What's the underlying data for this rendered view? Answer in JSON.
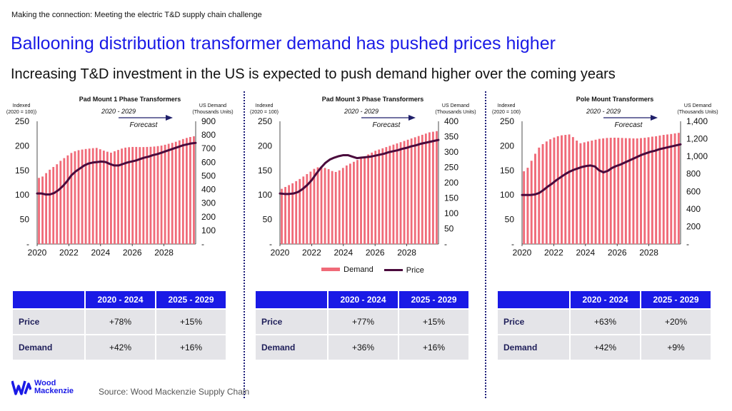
{
  "header": {
    "eyebrow": "Making the connection: Meeting the electric T&D supply chain challenge",
    "title": "Ballooning distribution transformer demand has pushed prices higher",
    "subtitle": "Increasing T&D investment in the US is expected to push demand higher over the coming years"
  },
  "colors": {
    "demand": "#f06a78",
    "price": "#4a0a3c",
    "accent": "#1a1ae6",
    "table_cell": "#e4e4e8"
  },
  "legend": {
    "demand": "Demand",
    "price": "Price"
  },
  "table_headers": [
    "2020 - 2024",
    "2025 - 2029"
  ],
  "row_labels": {
    "price": "Price",
    "demand": "Demand"
  },
  "chart_data": [
    {
      "type": "bar+line",
      "title": "Pad Mount 1 Phase Transformers",
      "left_axis_label": [
        "Indexed",
        "(2020 = 100))"
      ],
      "right_axis_label": [
        "US Demand",
        "(Thousands Units)"
      ],
      "period_label": "2020 - 2029",
      "forecast_label": "Forecast",
      "x_ticks": [
        "2020",
        "2022",
        "2024",
        "2026",
        "2028"
      ],
      "left_ticks": [
        "-",
        "50",
        "100",
        "150",
        "200",
        "250"
      ],
      "right_ticks": [
        "-",
        "100",
        "200",
        "300",
        "400",
        "500",
        "600",
        "700",
        "800",
        "900"
      ],
      "ylim_left": [
        0,
        250
      ],
      "ylim_right": [
        0,
        900
      ],
      "demand_quarterly": [
        485,
        495,
        520,
        545,
        565,
        585,
        610,
        630,
        650,
        668,
        680,
        688,
        693,
        697,
        700,
        703,
        705,
        695,
        685,
        677,
        670,
        680,
        690,
        700,
        707,
        710,
        712,
        712,
        711,
        711,
        712,
        713,
        715,
        718,
        722,
        728,
        735,
        742,
        750,
        760,
        770,
        778,
        785,
        790
      ],
      "price_index_quarterly": [
        103,
        103,
        101,
        101,
        104,
        110,
        118,
        128,
        140,
        148,
        154,
        160,
        164,
        166,
        167,
        168,
        167,
        163,
        160,
        160,
        163,
        166,
        168,
        170,
        173,
        176,
        178,
        181,
        183,
        186,
        189,
        192,
        195,
        198,
        201,
        203,
        205,
        206
      ],
      "table": {
        "price": [
          "+78%",
          "+15%"
        ],
        "demand": [
          "+42%",
          "+16%"
        ]
      }
    },
    {
      "type": "bar+line",
      "title": "Pad Mount 3 Phase Transformers",
      "left_axis_label": [
        "Indexed",
        "(2020 = 100)"
      ],
      "right_axis_label": [
        "US Demand",
        "(Thousands Units)"
      ],
      "period_label": "2020 - 2029",
      "forecast_label": "Forecast",
      "x_ticks": [
        "2020",
        "2022",
        "2024",
        "2026",
        "2028"
      ],
      "left_ticks": [
        "-",
        "50",
        "100",
        "150",
        "200",
        "250"
      ],
      "right_ticks": [
        "-",
        "50",
        "100",
        "150",
        "200",
        "250",
        "300",
        "350",
        "400"
      ],
      "ylim_left": [
        0,
        250
      ],
      "ylim_right": [
        0,
        400
      ],
      "demand_quarterly": [
        180,
        186,
        192,
        198,
        205,
        212,
        220,
        228,
        236,
        245,
        250,
        252,
        248,
        244,
        238,
        235,
        240,
        248,
        256,
        262,
        268,
        274,
        280,
        286,
        292,
        298,
        304,
        308,
        312,
        316,
        320,
        324,
        328,
        332,
        336,
        340,
        344,
        348,
        352,
        356,
        360,
        364,
        366,
        368
      ],
      "price_index_quarterly": [
        103,
        102,
        102,
        103,
        106,
        112,
        120,
        130,
        143,
        155,
        165,
        172,
        176,
        179,
        181,
        181,
        178,
        175,
        176,
        177,
        178,
        180,
        182,
        184,
        187,
        189,
        191,
        194,
        196,
        199,
        201,
        204,
        206,
        208,
        210,
        212
      ],
      "table": {
        "price": [
          "+77%",
          "+15%"
        ],
        "demand": [
          "+36%",
          "+16%"
        ]
      }
    },
    {
      "type": "bar+line",
      "title": "Pole Mount Transformers",
      "left_axis_label": [
        "Indexed",
        "(2020 = 100)"
      ],
      "right_axis_label": [
        "US Demand",
        "(Thousands Units)"
      ],
      "period_label": "2020 - 2029",
      "forecast_label": "Forecast",
      "x_ticks": [
        "2020",
        "2022",
        "2024",
        "2026",
        "2028"
      ],
      "left_ticks": [
        "-",
        "50",
        "100",
        "150",
        "200",
        "250"
      ],
      "right_ticks": [
        "-",
        "200",
        "400",
        "600",
        "800",
        "1,000",
        "1,200",
        "1,400"
      ],
      "ylim_left": [
        0,
        250
      ],
      "ylim_right": [
        0,
        1400
      ],
      "demand_quarterly": [
        830,
        870,
        950,
        1030,
        1100,
        1140,
        1170,
        1195,
        1215,
        1230,
        1240,
        1245,
        1250,
        1220,
        1180,
        1150,
        1160,
        1170,
        1180,
        1190,
        1200,
        1205,
        1210,
        1212,
        1213,
        1212,
        1210,
        1208,
        1207,
        1205,
        1205,
        1208,
        1212,
        1218,
        1225,
        1230,
        1238,
        1245,
        1250,
        1255,
        1262,
        1268
      ],
      "price_index_quarterly": [
        100,
        100,
        100,
        101,
        104,
        110,
        117,
        123,
        130,
        136,
        142,
        147,
        151,
        154,
        157,
        159,
        160,
        158,
        150,
        146,
        149,
        155,
        159,
        162,
        166,
        170,
        174,
        178,
        182,
        185,
        188,
        190,
        193,
        195,
        197,
        199,
        201,
        203
      ],
      "table": {
        "price": [
          "+63%",
          "+20%"
        ],
        "demand": [
          "+42%",
          "+9%"
        ]
      }
    }
  ],
  "footer": {
    "logo_text": [
      "Wood",
      "Mackenzie"
    ],
    "source": "Source: Wood Mackenzie Supply Chain"
  }
}
